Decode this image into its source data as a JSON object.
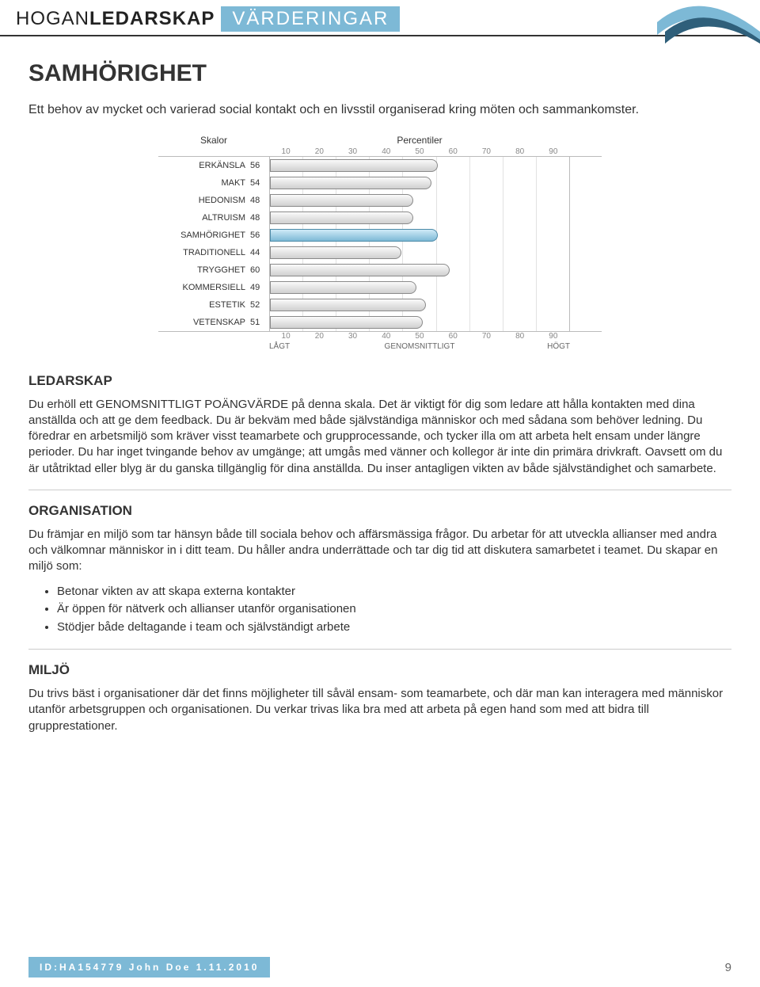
{
  "brand": {
    "line1a": "HOGAN",
    "line1b": "LEDARSKAP",
    "pill": "VÄRDERINGAR"
  },
  "title": "SAMHÖRIGHET",
  "intro": "Ett behov av mycket och varierad social kontakt och en livsstil organiserad kring möten och sammankomster.",
  "chart": {
    "label_header": "Skalor",
    "value_header": "Percentiler",
    "ticks": [
      "10",
      "20",
      "30",
      "40",
      "50",
      "60",
      "70",
      "80",
      "90"
    ],
    "legend": {
      "low": "LÅGT",
      "mid": "GENOMSNITTLIGT",
      "high": "HÖGT"
    },
    "max": 100,
    "bar_fill_start": "#fafafa",
    "bar_fill_end": "#cfcfcf",
    "highlight_fill_start": "#cfeaf7",
    "highlight_fill_end": "#7db9d6",
    "grid_color": "#e2e2e2",
    "border_color": "#bbbbbb",
    "rows": [
      {
        "label": "ERKÄNSLA",
        "value": 56,
        "highlight": false
      },
      {
        "label": "MAKT",
        "value": 54,
        "highlight": false
      },
      {
        "label": "HEDONISM",
        "value": 48,
        "highlight": false
      },
      {
        "label": "ALTRUISM",
        "value": 48,
        "highlight": false
      },
      {
        "label": "SAMHÖRIGHET",
        "value": 56,
        "highlight": true
      },
      {
        "label": "TRADITIONELL",
        "value": 44,
        "highlight": false
      },
      {
        "label": "TRYGGHET",
        "value": 60,
        "highlight": false
      },
      {
        "label": "KOMMERSIELL",
        "value": 49,
        "highlight": false
      },
      {
        "label": "ESTETIK",
        "value": 52,
        "highlight": false
      },
      {
        "label": "VETENSKAP",
        "value": 51,
        "highlight": false
      }
    ]
  },
  "sections": {
    "ledarskap": {
      "title": "LEDARSKAP",
      "body": "Du erhöll ett GENOMSNITTLIGT POÄNGVÄRDE på denna skala. Det är viktigt för dig som ledare att hålla kontakten med dina anställda och att ge dem feedback. Du är bekväm med både självständiga människor och med sådana som behöver ledning. Du föredrar en arbetsmiljö som kräver visst teamarbete och grupprocessande, och tycker illa om att arbeta helt ensam under längre perioder. Du har inget tvingande behov av umgänge; att umgås med vänner och kollegor är inte din primära drivkraft. Oavsett om du är utåtriktad eller blyg är du ganska tillgänglig för dina anställda. Du inser antagligen vikten av både självständighet och samarbete."
    },
    "organisation": {
      "title": "ORGANISATION",
      "body": "Du främjar en miljö som tar hänsyn både till sociala behov och affärsmässiga frågor. Du arbetar för att utveckla allianser med andra och välkomnar människor in i ditt team. Du håller andra underrättade och tar dig tid att diskutera samarbetet i teamet. Du skapar en miljö som:",
      "bullets": [
        "Betonar vikten av att skapa externa kontakter",
        "Är öppen för nätverk och allianser utanför organisationen",
        "Stödjer både deltagande i team och självständigt arbete"
      ]
    },
    "miljo": {
      "title": "MILJÖ",
      "body": "Du trivs bäst i organisationer där det finns möjligheter till såväl ensam- som teamarbete, och där man kan interagera med människor utanför arbetsgruppen och organisationen. Du verkar trivas lika bra med att arbeta på egen hand som med att bidra till grupprestationer."
    }
  },
  "footer": {
    "id_line": "ID:HA154779 John Doe 1.11.2010",
    "page": "9"
  }
}
